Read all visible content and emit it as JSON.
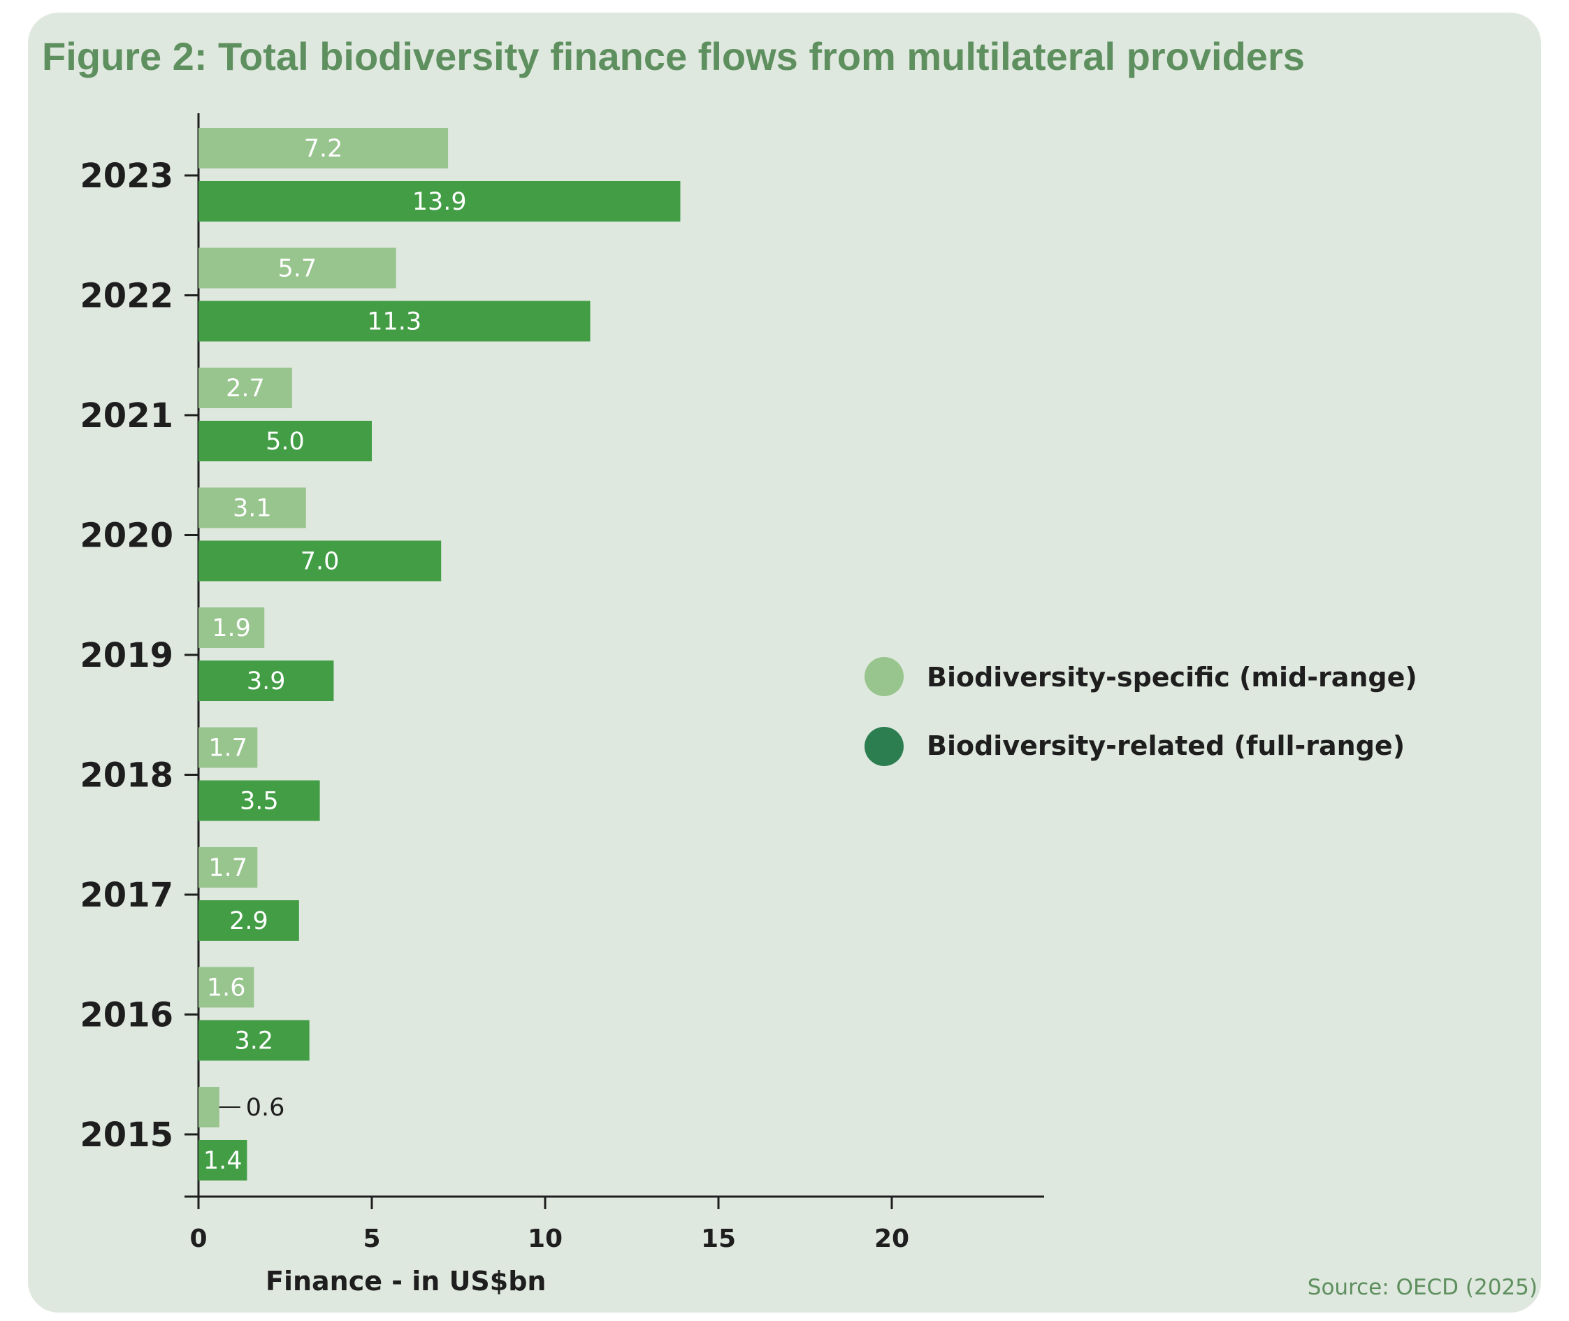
{
  "title": "Figure 2: Total biodiversity finance flows from multilateral providers",
  "source": "Source: OECD (2025)",
  "colors": {
    "background": "#dfe8df",
    "title": "#5e8f5e",
    "specific": "#98c48e",
    "related": "#429d45",
    "legend_related": "#2c7d50"
  },
  "chart_data": {
    "type": "bar",
    "orientation": "horizontal",
    "categories": [
      "2023",
      "2022",
      "2021",
      "2020",
      "2019",
      "2018",
      "2017",
      "2016",
      "2015"
    ],
    "series": [
      {
        "name": "Biodiversity-specific (mid-range)",
        "values": [
          7.2,
          5.7,
          2.7,
          3.1,
          1.9,
          1.7,
          1.7,
          1.6,
          0.6
        ]
      },
      {
        "name": "Biodiversity-related (full-range)",
        "values": [
          13.9,
          11.3,
          5.0,
          7.0,
          3.9,
          3.5,
          2.9,
          3.2,
          1.4
        ]
      }
    ],
    "value_labels": [
      [
        "7.2",
        "5.7",
        "2.7",
        "3.1",
        "1.9",
        "1.7",
        "1.7",
        "1.6",
        "0.6"
      ],
      [
        "13.9",
        "11.3",
        "5.0",
        "7.0",
        "3.9",
        "3.5",
        "2.9",
        "3.2",
        "1.4"
      ]
    ],
    "xticks": [
      "0",
      "5",
      "10",
      "15",
      "20"
    ],
    "xlabel": "Finance - in US$bn",
    "ylabel": "",
    "xlim": [
      0,
      24.5
    ],
    "grid": false,
    "legend_position": "right"
  }
}
